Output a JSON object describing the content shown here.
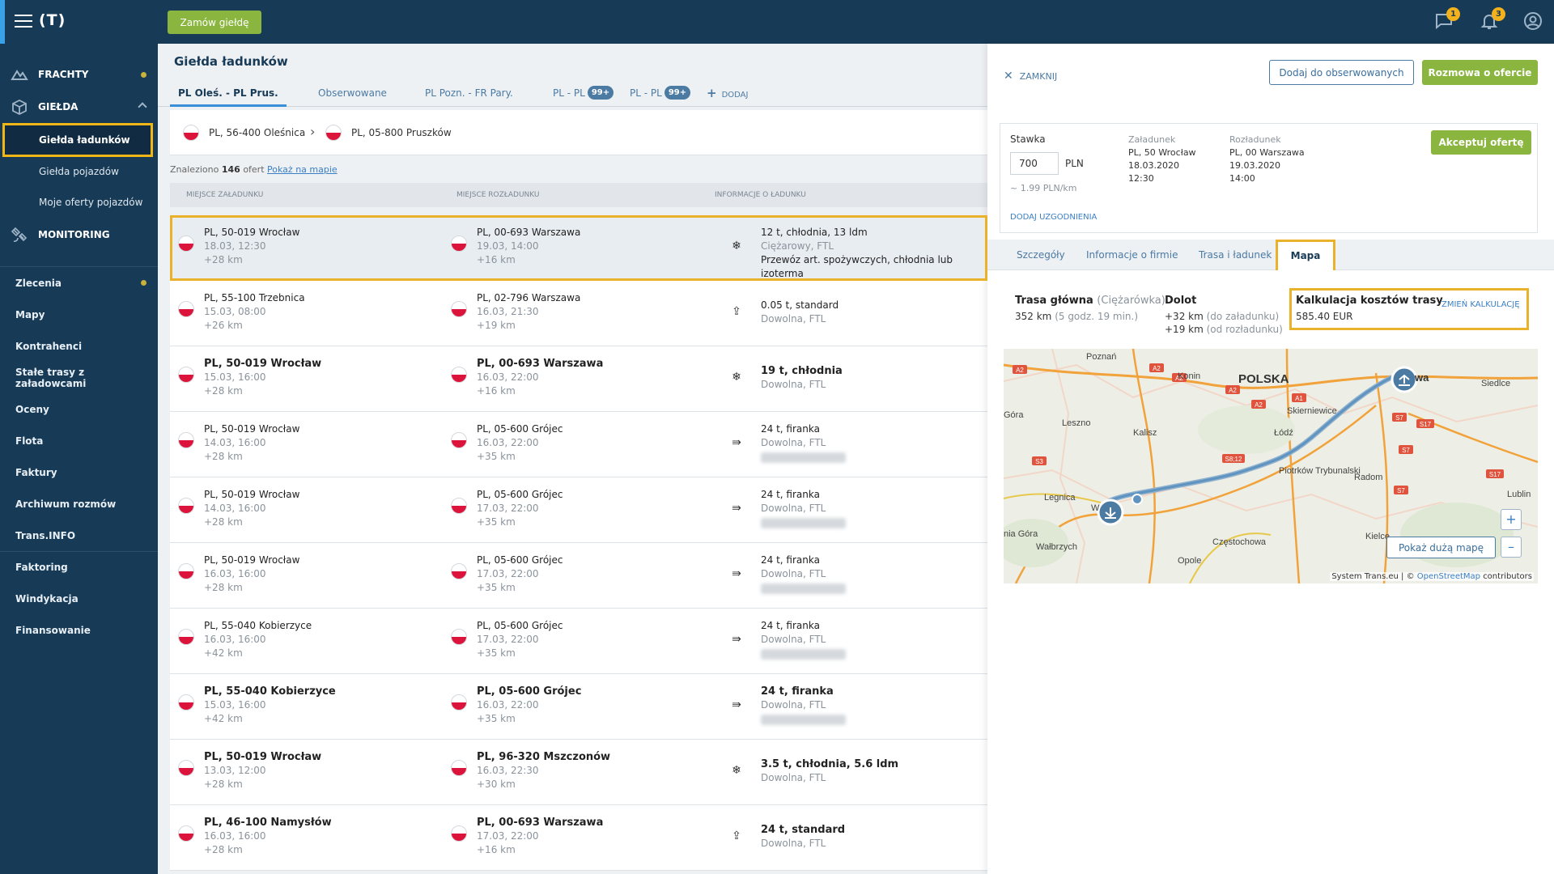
{
  "topbar": {
    "logo": "(T)",
    "order_button": "Zamów giełdę",
    "messages_badge": "1",
    "notifications_badge": "3"
  },
  "sidebar": {
    "groups": [
      {
        "label": "FRACHTY"
      },
      {
        "label": "GIEŁDA"
      },
      {
        "label": "MONITORING"
      }
    ],
    "gielda_sub": [
      "Giełda ładunków",
      "Giełda pojazdów",
      "Moje oferty pojazdów"
    ],
    "items": [
      "Zlecenia",
      "Mapy",
      "Kontrahenci",
      "Stałe trasy z załadowcami",
      "Oceny",
      "Flota",
      "Faktury",
      "Archiwum rozmów",
      "Trans.INFO",
      "Faktoring",
      "Windykacja",
      "Finansowanie"
    ]
  },
  "list": {
    "title": "Giełda ładunków",
    "tabs": [
      {
        "label": "PL Oleś. - PL Prus."
      },
      {
        "label": "Obserwowane"
      },
      {
        "label": "PL Pozn. - FR Pary."
      },
      {
        "label": "PL - PL",
        "badge": "99+"
      },
      {
        "label": "PL - PL",
        "badge": "99+"
      },
      {
        "label": "DODAJ"
      }
    ],
    "route_from": "PL, 56-400 Oleśnica",
    "route_to": "PL, 05-800 Pruszków",
    "found_prefix": "Znaleziono",
    "found_count": "146",
    "found_suffix": "ofert",
    "show_on_map": "Pokaż na mapie",
    "columns": [
      "MIEJSCE ZAŁADUNKU",
      "MIEJSCE ROZŁADUNKU",
      "INFORMACJE O ŁADUNKU"
    ],
    "rows": [
      {
        "from": "PL, 50-019 Wrocław",
        "from_date": "18.03, 12:30",
        "from_km": "+28 km",
        "to": "PL, 00-693 Warszawa",
        "to_date": "19.03, 14:00",
        "to_km": "+16 km",
        "icon": "snowflake-icon",
        "info1": "12 t, chłodnia, 13 ldm",
        "info2": "Ciężarowy, FTL",
        "info3": "Przewóz art. spożywczych, chłodnia lub izoterma",
        "bold": false,
        "selected": true,
        "blur": false
      },
      {
        "from": "PL, 55-100 Trzebnica",
        "from_date": "15.03, 08:00",
        "from_km": "+26 km",
        "to": "PL, 02-796 Warszawa",
        "to_date": "16.03, 21:30",
        "to_km": "+19 km",
        "icon": "box-icon",
        "info1": "0.05 t, standard",
        "info2": "Dowolna, FTL",
        "info3": "",
        "bold": false,
        "selected": false,
        "blur": false
      },
      {
        "from": "PL, 50-019 Wrocław",
        "from_date": "15.03, 16:00",
        "from_km": "+28 km",
        "to": "PL, 00-693 Warszawa",
        "to_date": "16.03, 22:00",
        "to_km": "+16 km",
        "icon": "snowflake-icon",
        "info1": "19 t, chłodnia",
        "info2": "Dowolna, FTL",
        "info3": "",
        "bold": true,
        "selected": false,
        "blur": false
      },
      {
        "from": "PL, 50-019 Wrocław",
        "from_date": "14.03, 16:00",
        "from_km": "+28 km",
        "to": "PL, 05-600 Grójec",
        "to_date": "16.03, 22:00",
        "to_km": "+35 km",
        "icon": "curtain-icon",
        "info1": "24 t, firanka",
        "info2": "Dowolna, FTL",
        "info3": "",
        "bold": false,
        "selected": false,
        "blur": true
      },
      {
        "from": "PL, 50-019 Wrocław",
        "from_date": "14.03, 16:00",
        "from_km": "+28 km",
        "to": "PL, 05-600 Grójec",
        "to_date": "17.03, 22:00",
        "to_km": "+35 km",
        "icon": "curtain-icon",
        "info1": "24 t, firanka",
        "info2": "Dowolna, FTL",
        "info3": "",
        "bold": false,
        "selected": false,
        "blur": true
      },
      {
        "from": "PL, 50-019 Wrocław",
        "from_date": "16.03, 16:00",
        "from_km": "+28 km",
        "to": "PL, 05-600 Grójec",
        "to_date": "17.03, 22:00",
        "to_km": "+35 km",
        "icon": "curtain-icon",
        "info1": "24 t, firanka",
        "info2": "Dowolna, FTL",
        "info3": "",
        "bold": false,
        "selected": false,
        "blur": true
      },
      {
        "from": "PL, 55-040 Kobierzyce",
        "from_date": "16.03, 16:00",
        "from_km": "+42 km",
        "to": "PL, 05-600 Grójec",
        "to_date": "17.03, 22:00",
        "to_km": "+35 km",
        "icon": "curtain-icon",
        "info1": "24 t, firanka",
        "info2": "Dowolna, FTL",
        "info3": "",
        "bold": false,
        "selected": false,
        "blur": true
      },
      {
        "from": "PL, 55-040 Kobierzyce",
        "from_date": "15.03, 16:00",
        "from_km": "+42 km",
        "to": "PL, 05-600 Grójec",
        "to_date": "16.03, 22:00",
        "to_km": "+35 km",
        "icon": "curtain-icon",
        "info1": "24 t, firanka",
        "info2": "Dowolna, FTL",
        "info3": "",
        "bold": true,
        "selected": false,
        "blur": true
      },
      {
        "from": "PL, 50-019 Wrocław",
        "from_date": "13.03, 12:00",
        "from_km": "+28 km",
        "to": "PL, 96-320 Mszczonów",
        "to_date": "16.03, 22:30",
        "to_km": "+30 km",
        "icon": "snowflake-icon",
        "info1": "3.5 t, chłodnia, 5.6 ldm",
        "info2": "Dowolna, FTL",
        "info3": "",
        "bold": true,
        "selected": false,
        "blur": false
      },
      {
        "from": "PL, 46-100 Namysłów",
        "from_date": "16.03, 16:00",
        "from_km": "+28 km",
        "to": "PL, 00-693 Warszawa",
        "to_date": "17.03, 22:00",
        "to_km": "+16 km",
        "icon": "box-icon",
        "info1": "24 t, standard",
        "info2": "Dowolna, FTL",
        "info3": "",
        "bold": true,
        "selected": false,
        "blur": false
      }
    ]
  },
  "detail": {
    "close": "ZAMKNIJ",
    "watch_button": "Dodaj do obserwowanych",
    "talk_button": "Rozmowa o ofercie",
    "rate_label": "Stawka",
    "rate_value": "700",
    "rate_currency": "PLN",
    "rate_per_km": "~ 1.99 PLN/km",
    "loading_label": "Załadunek",
    "loading_place": "PL, 50 Wrocław",
    "loading_date": "18.03.2020",
    "loading_time": "12:30",
    "unloading_label": "Rozładunek",
    "unloading_place": "PL, 00 Warszawa",
    "unloading_date": "19.03.2020",
    "unloading_time": "14:00",
    "accept_button": "Akceptuj ofertę",
    "add_agreements": "DODAJ UZGODNIENIA",
    "tabs": [
      "Szczegóły",
      "Informacje o firmie",
      "Trasa i ładunek",
      "Mapa"
    ],
    "main_route_label": "Trasa główna",
    "main_route_vehicle": "(Ciężarówka)",
    "main_route_km": "352 km",
    "main_route_time": "(5 godz. 19 min.)",
    "dolot_label": "Dolot",
    "dolot_load_km": "+32 km",
    "dolot_load_note": "(do załadunku)",
    "dolot_unload_km": "+19 km",
    "dolot_unload_note": "(od rozładunku)",
    "calc_label": "Kalkulacja kosztów trasy",
    "calc_value": "585.40 EUR",
    "calc_change": "ZMIEŃ KALKULACJĘ",
    "show_big_map": "Pokaż dużą mapę",
    "zoom_in": "+",
    "zoom_out": "–",
    "attribution_prefix": "System Trans.eu | ©",
    "attribution_link": "OpenStreetMap",
    "attribution_suffix": "contributors"
  },
  "map_labels": [
    "Poznań",
    "Konin",
    "POLSKA",
    "Siedlce",
    "Góra",
    "Leszno",
    "Kalisz",
    "Skierniewice",
    "Łódź",
    "Piotrków Trybunalski",
    "Radom",
    "Legnica",
    "Lublin",
    "Wałbrzych",
    "Częstochowa",
    "Kielce",
    "Opole",
    "nia Góra",
    "W",
    "wa"
  ],
  "road_labels": [
    "A2",
    "A2",
    "A2",
    "A2",
    "A2",
    "A1",
    "S7",
    "S17",
    "S7",
    "S3",
    "S8;12",
    "S7",
    "S17"
  ]
}
